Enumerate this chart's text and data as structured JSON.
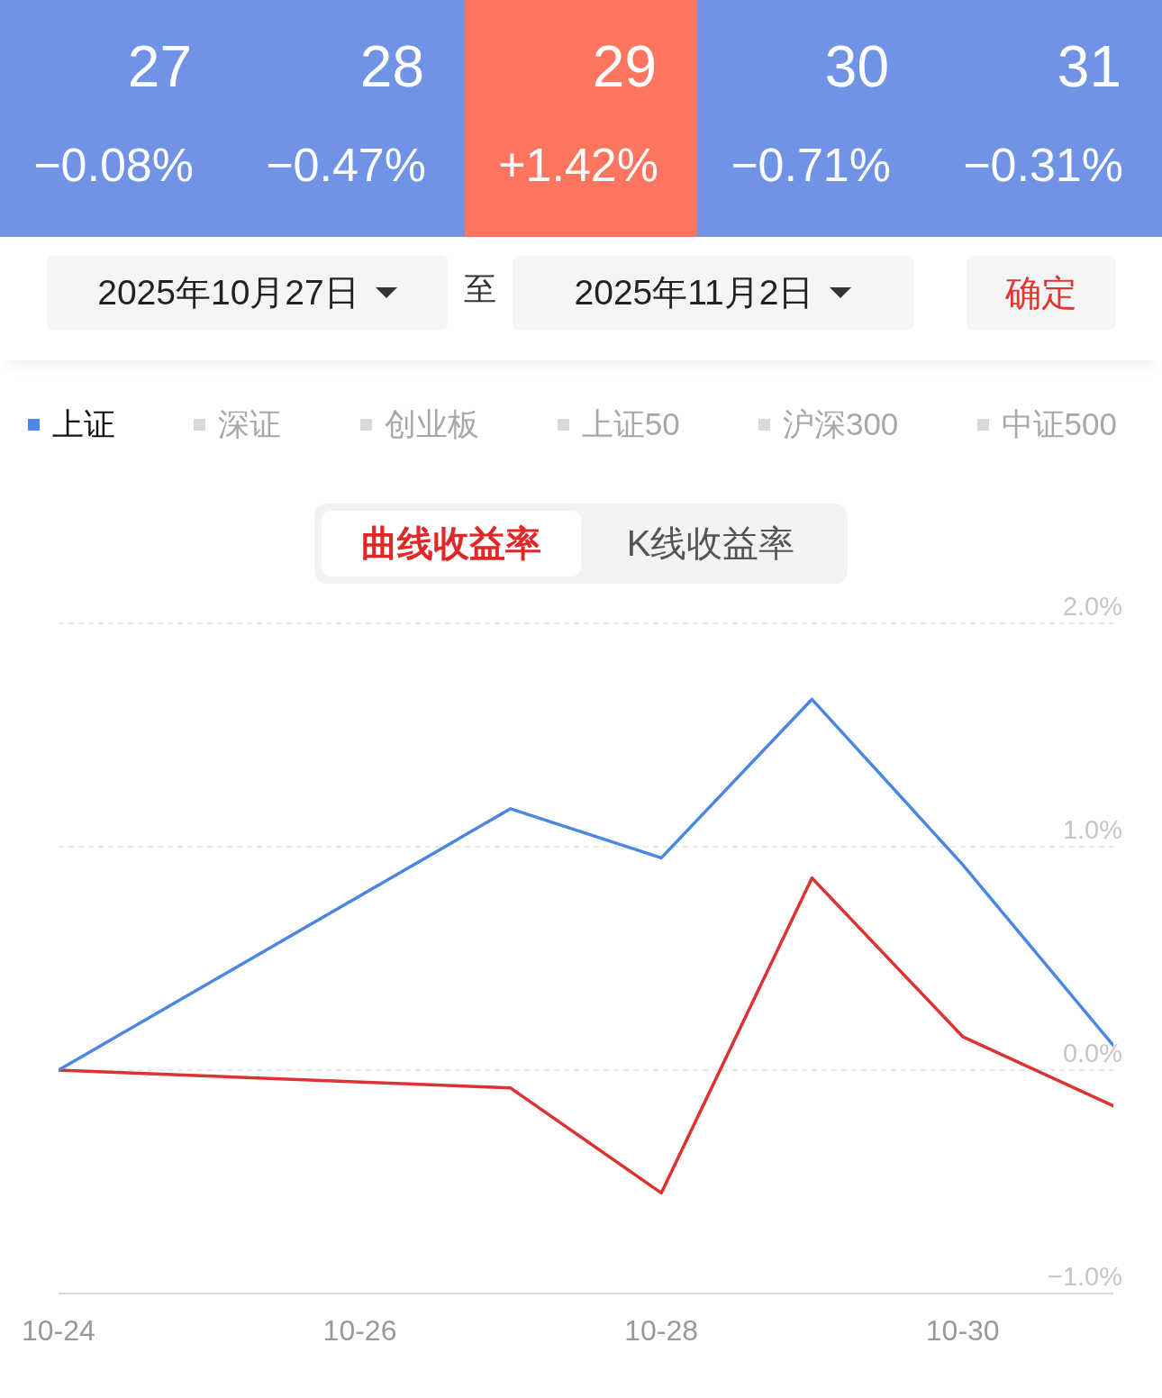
{
  "chart_data": [
    {
      "type": "heatmap",
      "categories": [
        "27",
        "28",
        "29",
        "30",
        "31"
      ],
      "y_categories": [
        null
      ],
      "cells": [
        [
          -0.08,
          -0.47,
          1.42,
          -0.71,
          -0.31
        ]
      ],
      "cell_labels": [
        [
          "−0.08%",
          "−0.47%",
          "+1.42%",
          "−0.71%",
          "−0.31%"
        ]
      ],
      "annotations": [
        "2025年10月27日",
        "至",
        "2025年11月2日",
        "确定"
      ]
    },
    {
      "type": "line",
      "x": [
        "--10-24",
        "--10-27",
        "--10-28",
        "--10-29",
        "--10-30",
        "--10-31"
      ],
      "series": [
        {
          "name": "上证",
          "color": "#4a86e2",
          "values": [
            0,
            1.17,
            0.95,
            1.66,
            0.92,
            0.11
          ]
        },
        {
          "color": "#dc3232",
          "values": [
            0,
            -0.08,
            -0.55,
            0.86,
            0.15,
            -0.16
          ]
        }
      ],
      "xlim": [
        "--10-24",
        "--10-31"
      ],
      "xticks": [
        {
          "value": "--10-24",
          "label": "10-24"
        },
        {
          "value": "--10-26",
          "label": "10-26"
        },
        {
          "value": "--10-28",
          "label": "10-28"
        },
        {
          "value": "--10-30",
          "label": "10-30"
        }
      ],
      "ylim": [
        -1,
        2
      ],
      "yticks": [
        {
          "value": -1,
          "label": "−1.0%"
        },
        {
          "value": 0,
          "label": "0.0%"
        },
        {
          "value": 1,
          "label": "1.0%"
        },
        {
          "value": 2,
          "label": "2.0%"
        }
      ],
      "grid": "y",
      "legend": "top",
      "annotations": [
        "深证",
        "创业板",
        "上证50",
        "沪深300",
        "中证500",
        "曲线收益率",
        "K线收益率"
      ]
    }
  ]
}
